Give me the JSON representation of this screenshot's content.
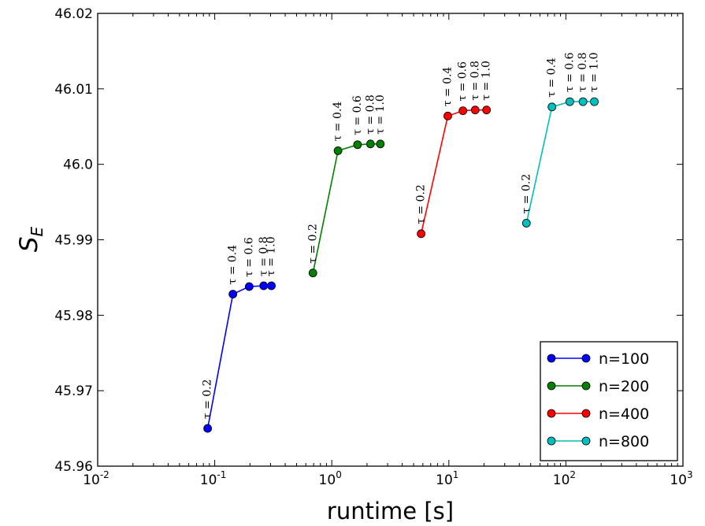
{
  "chart_data": {
    "type": "line",
    "xlabel": "runtime [s]",
    "ylabel": "S",
    "ylabel_sub": "E",
    "xscale": "log",
    "xlim": [
      0.01,
      1000
    ],
    "ylim": [
      45.96,
      46.02
    ],
    "grid": false,
    "legend_position": "bottom-right",
    "x_ticks": [
      {
        "value": 0.01,
        "base": "10",
        "exp": "-2"
      },
      {
        "value": 0.1,
        "base": "10",
        "exp": "-1"
      },
      {
        "value": 1,
        "base": "10",
        "exp": "0"
      },
      {
        "value": 10,
        "base": "10",
        "exp": "1"
      },
      {
        "value": 100,
        "base": "10",
        "exp": "2"
      },
      {
        "value": 1000,
        "base": "10",
        "exp": "3"
      }
    ],
    "y_ticks": [
      {
        "value": 45.96,
        "label": "45.96"
      },
      {
        "value": 45.97,
        "label": "45.97"
      },
      {
        "value": 45.98,
        "label": "45.98"
      },
      {
        "value": 45.99,
        "label": "45.99"
      },
      {
        "value": 46.0,
        "label": "46.0"
      },
      {
        "value": 46.01,
        "label": "46.01"
      },
      {
        "value": 46.02,
        "label": "46.02"
      }
    ],
    "series": [
      {
        "name": "n=100",
        "color": "#0000ff",
        "x": [
          0.087,
          0.143,
          0.197,
          0.262,
          0.305
        ],
        "y": [
          45.965,
          45.9828,
          45.9838,
          45.9839,
          45.9839
        ]
      },
      {
        "name": "n=200",
        "color": "#007f00",
        "x": [
          0.69,
          1.13,
          1.66,
          2.14,
          2.6
        ],
        "y": [
          45.9856,
          46.0018,
          46.0026,
          46.0027,
          46.0027
        ]
      },
      {
        "name": "n=400",
        "color": "#ff0000",
        "x": [
          5.8,
          9.8,
          13.2,
          16.8,
          21.0
        ],
        "y": [
          45.9908,
          46.0064,
          46.0071,
          46.0072,
          46.0072
        ]
      },
      {
        "name": "n=800",
        "color": "#00bfbf",
        "x": [
          46,
          76,
          108,
          140,
          175
        ],
        "y": [
          45.9922,
          46.0076,
          46.0083,
          46.0083,
          46.0083
        ]
      }
    ],
    "annotations": [
      {
        "text": "τ = 0.2",
        "x": 0.087,
        "y": 45.965
      },
      {
        "text": "τ = 0.4",
        "x": 0.143,
        "y": 45.9828
      },
      {
        "text": "τ = 0.6",
        "x": 0.197,
        "y": 45.9838
      },
      {
        "text": "τ = 0.8",
        "x": 0.262,
        "y": 45.9839
      },
      {
        "text": "τ = 1.0",
        "x": 0.305,
        "y": 45.9839
      },
      {
        "text": "τ = 0.2",
        "x": 0.69,
        "y": 45.9856
      },
      {
        "text": "τ = 0.4",
        "x": 1.13,
        "y": 46.0018
      },
      {
        "text": "τ = 0.6",
        "x": 1.66,
        "y": 46.0026
      },
      {
        "text": "τ = 0.8",
        "x": 2.14,
        "y": 46.0027
      },
      {
        "text": "τ = 1.0",
        "x": 2.6,
        "y": 46.0027
      },
      {
        "text": "τ = 0.2",
        "x": 5.8,
        "y": 45.9908
      },
      {
        "text": "τ = 0.4",
        "x": 9.8,
        "y": 46.0064
      },
      {
        "text": "τ = 0.6",
        "x": 13.2,
        "y": 46.0071
      },
      {
        "text": "τ = 0.8",
        "x": 16.8,
        "y": 46.0072
      },
      {
        "text": "τ = 1.0",
        "x": 21.0,
        "y": 46.0072
      },
      {
        "text": "τ = 0.2",
        "x": 46,
        "y": 45.9922
      },
      {
        "text": "τ = 0.4",
        "x": 76,
        "y": 46.0076
      },
      {
        "text": "τ = 0.6",
        "x": 108,
        "y": 46.0083
      },
      {
        "text": "τ = 0.8",
        "x": 140,
        "y": 46.0083
      },
      {
        "text": "τ = 1.0",
        "x": 175,
        "y": 46.0083
      }
    ]
  }
}
